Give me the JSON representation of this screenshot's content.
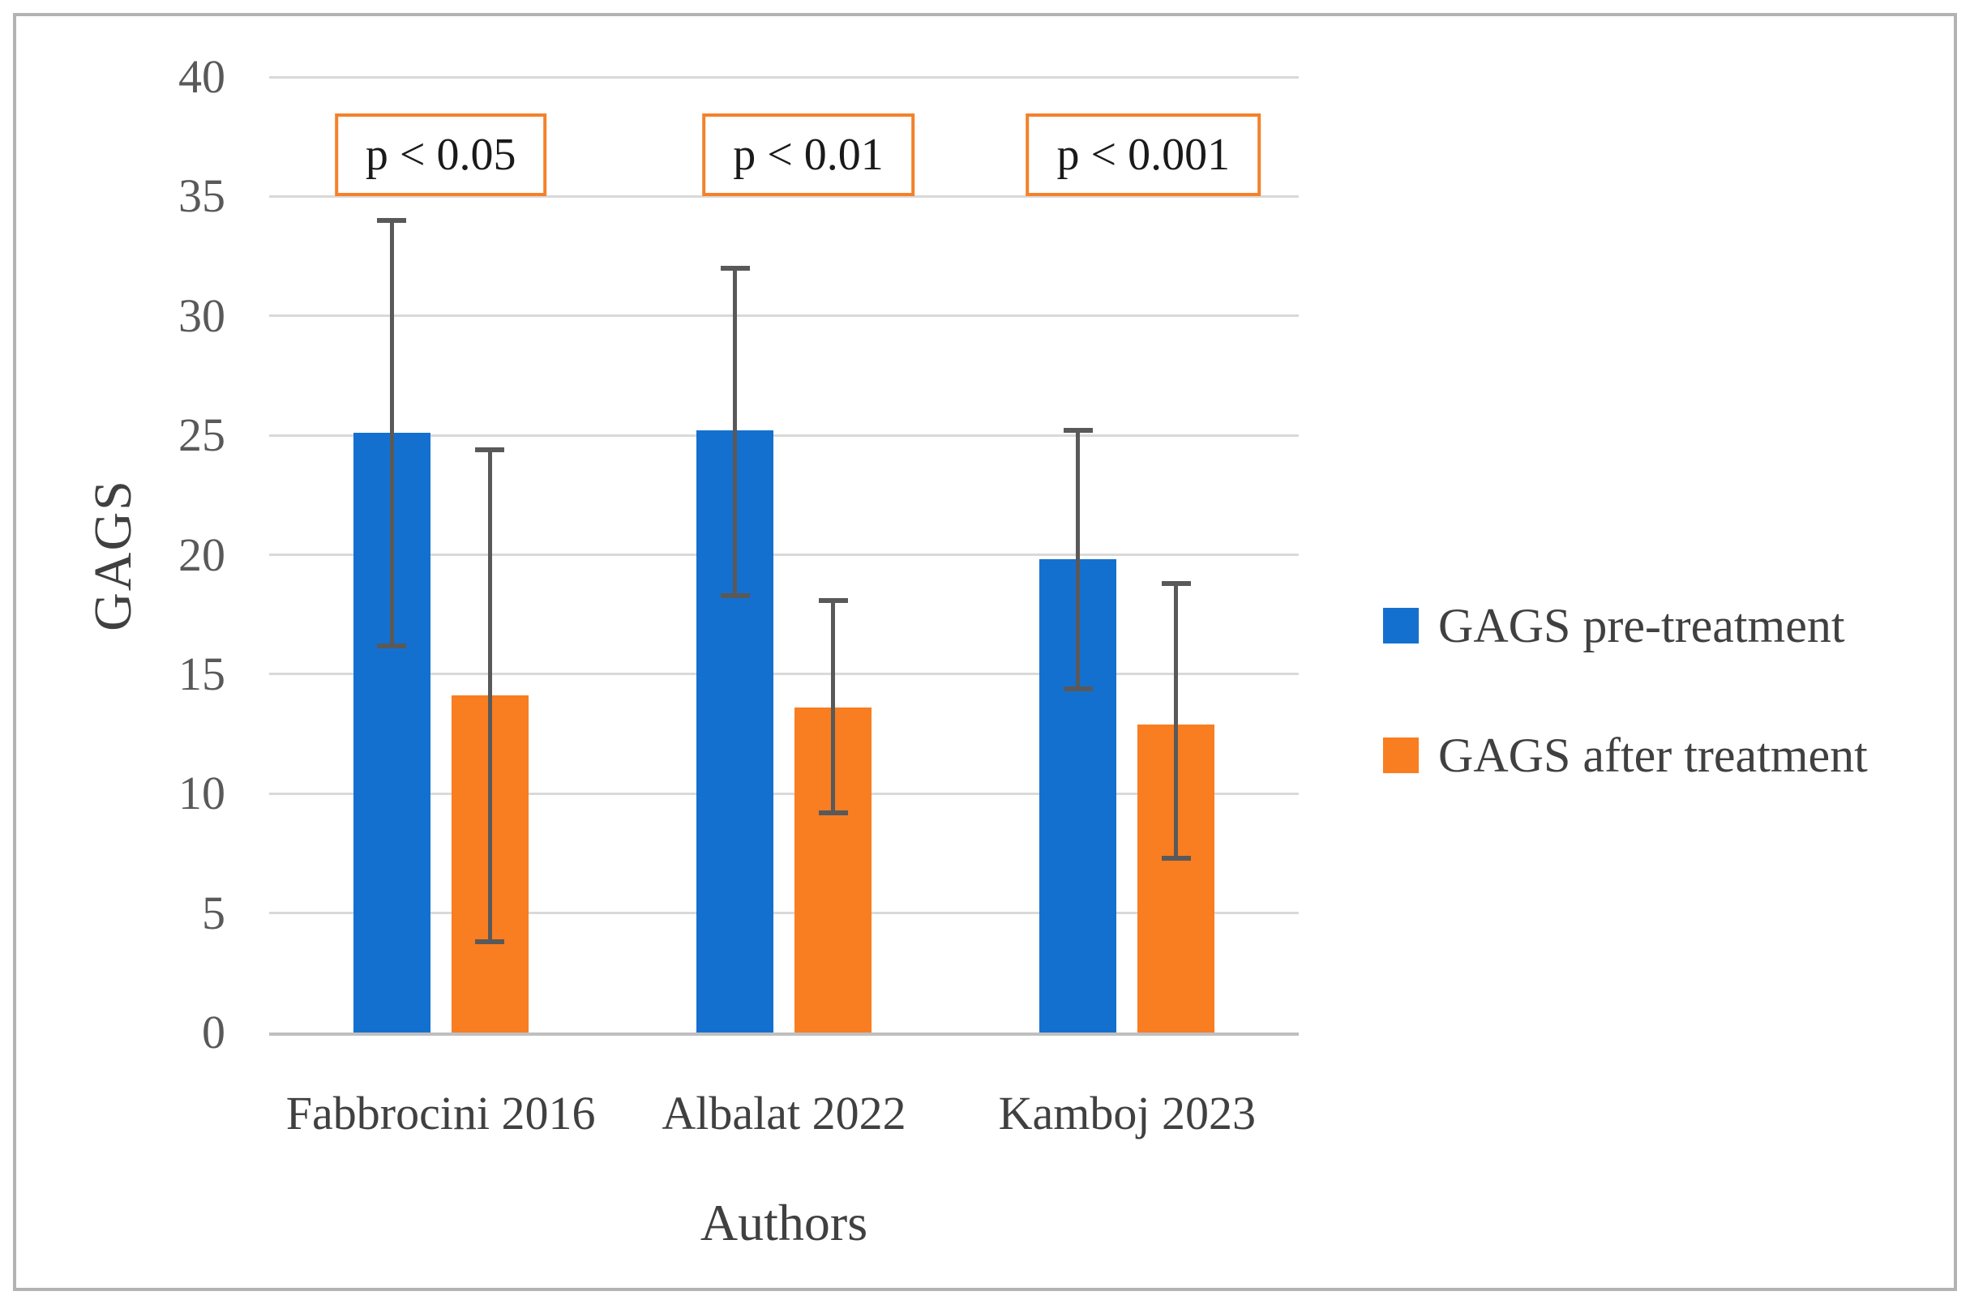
{
  "figure": {
    "border_color": "#b3b3b3",
    "background": "#ffffff"
  },
  "chart_data": {
    "type": "bar",
    "title": "",
    "xlabel": "Authors",
    "ylabel": "GAGS",
    "categories": [
      "Fabbrocini 2016",
      "Albalat 2022",
      "Kamboj 2023"
    ],
    "series": [
      {
        "name": "GAGS pre-treatment",
        "color": "#1470cf",
        "values": [
          25.1,
          25.2,
          19.8
        ],
        "error_low": [
          16.2,
          18.3,
          14.4
        ],
        "error_high": [
          34.0,
          32.0,
          25.2
        ]
      },
      {
        "name": "GAGS after treatment",
        "color": "#f97d21",
        "values": [
          14.1,
          13.6,
          12.9
        ],
        "error_low": [
          3.8,
          9.2,
          7.3
        ],
        "error_high": [
          24.4,
          18.1,
          18.8
        ]
      }
    ],
    "annotations": [
      {
        "label": "p < 0.05",
        "category": "Fabbrocini 2016"
      },
      {
        "label": "p < 0.01",
        "category": "Albalat 2022"
      },
      {
        "label": "p < 0.001",
        "category": "Kamboj 2023"
      }
    ],
    "ylim": [
      0,
      40
    ],
    "ytick_step": 5,
    "grid": true,
    "error_bars": true,
    "legend_position": "right",
    "annotation_border_color": "#f4812a",
    "error_bar_color": "#595959"
  }
}
